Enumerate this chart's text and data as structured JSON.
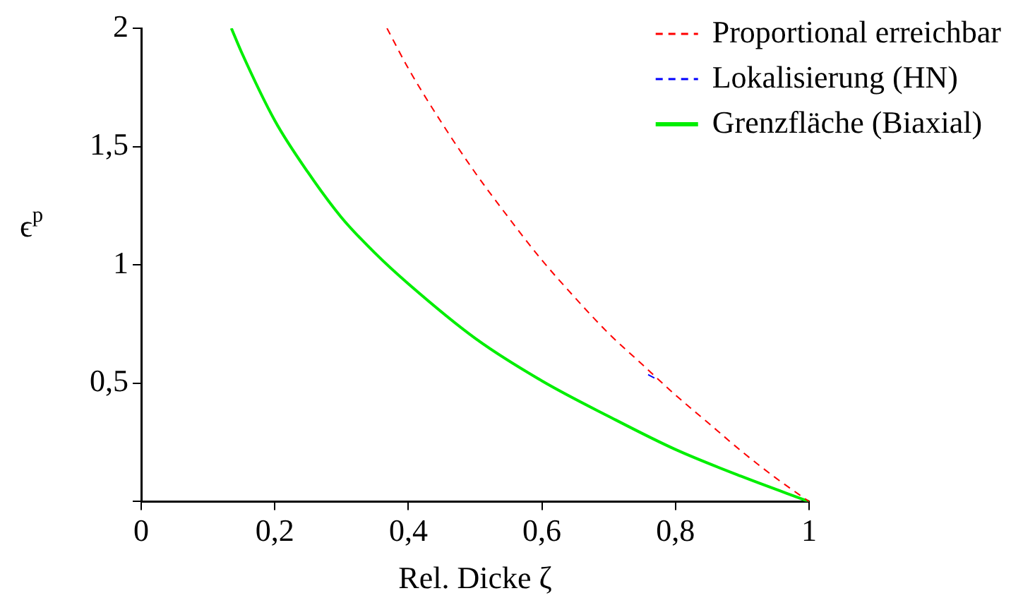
{
  "chart_data": {
    "type": "line",
    "xlabel": "Rel. Dicke ζ",
    "ylabel": "ϵ$^{p}$",
    "xlim": [
      0,
      1
    ],
    "ylim": [
      0,
      2
    ],
    "xticks": [
      0,
      {
        "value": 0.2,
        "label": "0,2"
      },
      {
        "value": 0.4,
        "label": "0,4"
      },
      {
        "value": 0.6,
        "label": "0,6"
      },
      {
        "value": 0.8,
        "label": "0,8"
      },
      1
    ],
    "yticks": [
      {
        "value": 0,
        "label": null
      },
      {
        "value": 0.5,
        "label": "0,5"
      },
      1,
      {
        "value": 1.5,
        "label": "1,5"
      },
      2
    ],
    "grid": false,
    "legend": "top right",
    "marker": "none",
    "series": [
      {
        "name": "Proportional erreichbar",
        "color": "#ff0000",
        "line_style": "dashed",
        "x": [
          0.368,
          0.4,
          0.45,
          0.5,
          0.55,
          0.6,
          0.65,
          0.7,
          0.75,
          0.8,
          0.85,
          0.9,
          0.95,
          1
        ],
        "values": [
          2,
          1.83,
          1.6,
          1.39,
          1.2,
          1.02,
          0.86,
          0.71,
          0.58,
          0.45,
          0.33,
          0.21,
          0.1,
          0
        ]
      },
      {
        "name": "Lokalisierung (HN)",
        "color": "#0000ff",
        "line_style": "dashed",
        "x": [
          0.759,
          0.77
        ],
        "values": [
          0.536,
          0.52
        ]
      },
      {
        "name": "Grenzfläche (Biaxial)",
        "color": "#00ee00",
        "line_style": "solid",
        "x": [
          0.135,
          0.15,
          0.2,
          0.25,
          0.3,
          0.35,
          0.4,
          0.5,
          0.6,
          0.7,
          0.8,
          0.9,
          1
        ],
        "values": [
          2,
          1.9,
          1.61,
          1.39,
          1.2,
          1.05,
          0.92,
          0.69,
          0.51,
          0.36,
          0.22,
          0.105,
          0
        ]
      }
    ]
  }
}
